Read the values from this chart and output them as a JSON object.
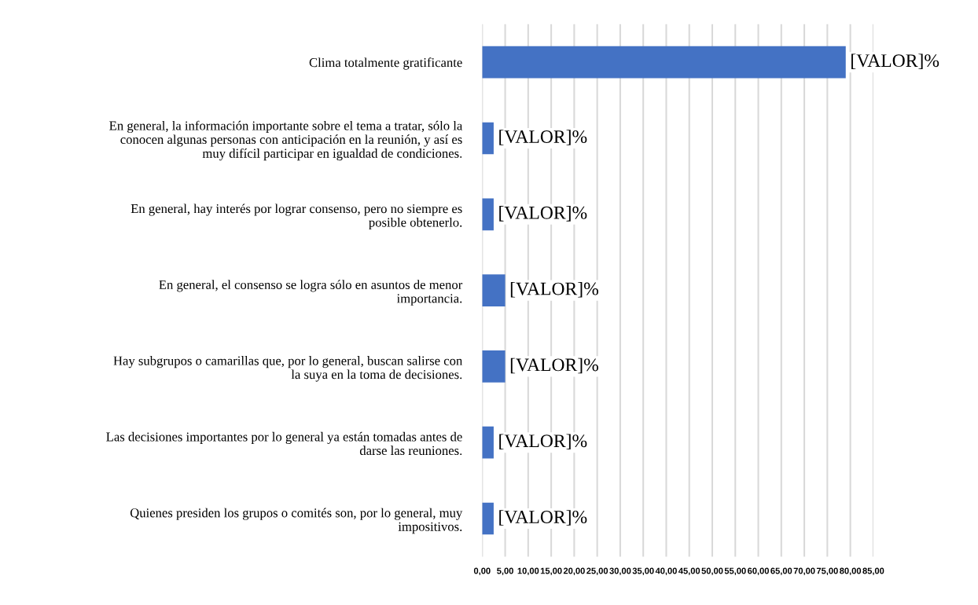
{
  "chart_data": {
    "type": "bar",
    "orientation": "horizontal",
    "categories": [
      "Clima totalmente gratificante",
      "En general, la información importante sobre el tema a tratar, sólo la\nconocen algunas personas con anticipación en la reunión, y así es\nmuy difícil participar en igualdad de condiciones.",
      "En general, hay interés por lograr consenso, pero no siempre es\nposible obtenerlo.",
      "En general, el consenso se logra sólo en asuntos de menor\nimportancia.",
      "Hay subgrupos o camarillas que, por lo general, buscan salirse con\nla suya en la toma de decisiones.",
      "Las decisiones importantes por lo general ya están tomadas antes de\ndarse las reuniones.",
      "Quienes presiden los grupos o comités son, por lo general, muy\nimpositivos."
    ],
    "values": [
      79,
      2.5,
      2.5,
      5,
      5,
      2.5,
      2.5
    ],
    "value_labels": [
      "[VALOR]%",
      "[VALOR]%",
      "[VALOR]%",
      "[VALOR]%",
      "[VALOR]%",
      "[VALOR]%",
      "[VALOR]%"
    ],
    "color": "#4472c4",
    "xlim": [
      0,
      85
    ],
    "xticks": [
      {
        "value": 0,
        "label": "0,00"
      },
      {
        "value": 5,
        "label": "5,00"
      },
      {
        "value": 10,
        "label": "10,00"
      },
      {
        "value": 15,
        "label": "15,00"
      },
      {
        "value": 20,
        "label": "20,00"
      },
      {
        "value": 25,
        "label": "25,00"
      },
      {
        "value": 30,
        "label": "30,00"
      },
      {
        "value": 35,
        "label": "35,00"
      },
      {
        "value": 40,
        "label": "40,00"
      },
      {
        "value": 45,
        "label": "45,00"
      },
      {
        "value": 50,
        "label": "50,00"
      },
      {
        "value": 55,
        "label": "55,00"
      },
      {
        "value": 60,
        "label": "60,00"
      },
      {
        "value": 65,
        "label": "65,00"
      },
      {
        "value": 70,
        "label": "70,00"
      },
      {
        "value": 75,
        "label": "75,00"
      },
      {
        "value": 80,
        "label": "80,00"
      },
      {
        "value": 85,
        "label": "85,00"
      }
    ],
    "grid": "x"
  }
}
